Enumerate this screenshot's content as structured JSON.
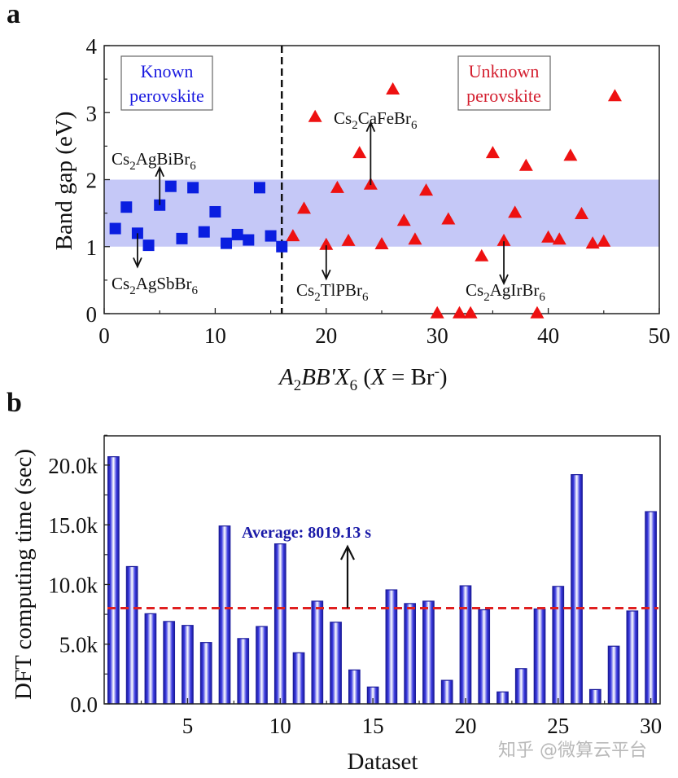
{
  "chart_data": [
    {
      "panel": "a",
      "type": "scatter",
      "xlabel": "A2BB'X6 (X = Br-)",
      "xlabel_parts": {
        "A": "A",
        "sub2": "2",
        "BB": "BB'",
        "X": "X",
        "sub6": "6",
        "paren_open": " (",
        "Xvar": "X",
        "eq": " = Br",
        "sup": "-",
        "paren_close": ")"
      },
      "ylabel": "Band gap (eV)",
      "xlim": [
        0,
        50
      ],
      "ylim": [
        0,
        4
      ],
      "xticks": [
        0,
        10,
        20,
        30,
        40,
        50
      ],
      "yticks": [
        0,
        1,
        2,
        3,
        4
      ],
      "shaded_band": {
        "from": 1.0,
        "to": 2.0,
        "color": "#c5c8f7"
      },
      "divider_x": 16,
      "series": [
        {
          "name": "Known perovskite",
          "marker": "square",
          "color": "#0a1ee0",
          "x": [
            1,
            2,
            3,
            4,
            5,
            6,
            7,
            8,
            9,
            10,
            11,
            12,
            13,
            14,
            15,
            16
          ],
          "y": [
            1.27,
            1.59,
            1.2,
            1.02,
            1.62,
            1.9,
            1.12,
            1.88,
            1.22,
            1.52,
            1.05,
            1.18,
            1.1,
            1.88,
            1.16,
            1.0
          ]
        },
        {
          "name": "Unknown perovskite",
          "marker": "triangle",
          "color": "#ee1111",
          "x": [
            17,
            18,
            19,
            20,
            21,
            22,
            23,
            24,
            25,
            26,
            27,
            28,
            29,
            30,
            31,
            32,
            33,
            34,
            35,
            36,
            37,
            38,
            39,
            40,
            41,
            42,
            43,
            44,
            45,
            46
          ],
          "y": [
            1.15,
            1.56,
            2.93,
            1.02,
            1.87,
            1.08,
            2.39,
            1.92,
            1.03,
            3.34,
            1.38,
            1.1,
            1.83,
            0.0,
            1.4,
            0.0,
            0.0,
            0.85,
            2.39,
            1.08,
            1.5,
            2.2,
            0.0,
            1.13,
            1.1,
            2.35,
            1.48,
            1.04,
            1.07,
            3.24
          ]
        }
      ],
      "legend_boxes": [
        {
          "line1": "Known",
          "line2": "perovskite",
          "color": "#1a1ae0",
          "placement": "top-left"
        },
        {
          "line1": "Unknown",
          "line2": "perovskite",
          "color": "#d42030",
          "placement": "top-right"
        }
      ],
      "annotations": [
        {
          "base": "Cs",
          "sub1": "2",
          "rest": "AgBiBr",
          "sub2": "6",
          "point_x": 5,
          "point_y": 1.62,
          "direction": "up"
        },
        {
          "base": "Cs",
          "sub1": "2",
          "rest": "AgSbBr",
          "sub2": "6",
          "point_x": 3,
          "point_y": 1.2,
          "direction": "down"
        },
        {
          "base": "Cs",
          "sub1": "2",
          "rest": "CaFeBr",
          "sub2": "6",
          "point_x": 24,
          "point_y": 1.92,
          "direction": "up"
        },
        {
          "base": "Cs",
          "sub1": "2",
          "rest": "TlPBr",
          "sub2": "6",
          "point_x": 20,
          "point_y": 1.02,
          "direction": "down"
        },
        {
          "base": "Cs",
          "sub1": "2",
          "rest": "AgIrBr",
          "sub2": "6",
          "point_x": 36,
          "point_y": 1.08,
          "direction": "down"
        }
      ]
    },
    {
      "panel": "b",
      "type": "bar",
      "xlabel": "Dataset",
      "ylabel": "DFT computing time (sec)",
      "xlim": [
        0.5,
        30.5
      ],
      "ylim": [
        0,
        22450
      ],
      "xticks": [
        5,
        10,
        15,
        20,
        25,
        30
      ],
      "yticks": [
        0,
        5000,
        10000,
        15000,
        20000
      ],
      "ytick_labels": [
        "0.0",
        "5.0k",
        "10.0k",
        "15.0k",
        "20.0k"
      ],
      "categories": [
        1,
        2,
        3,
        4,
        5,
        6,
        7,
        8,
        9,
        10,
        11,
        12,
        13,
        14,
        15,
        16,
        17,
        18,
        19,
        20,
        21,
        22,
        23,
        24,
        25,
        26,
        27,
        28,
        29,
        30
      ],
      "values": [
        20700,
        11500,
        7550,
        6900,
        6570,
        5140,
        14900,
        5470,
        6480,
        13400,
        4280,
        8600,
        6840,
        2840,
        1410,
        9550,
        8400,
        8600,
        1970,
        9890,
        7880,
        1000,
        2950,
        7950,
        9840,
        19200,
        1200,
        4830,
        7780,
        16100
      ],
      "bar_color": "#1c1c9c",
      "average": {
        "value": 8019.13,
        "label": "Average: 8019.13 s",
        "line_color": "#e02020"
      }
    }
  ],
  "panel_labels": {
    "a": "a",
    "b": "b"
  },
  "watermark": "知乎 @微算云平台"
}
